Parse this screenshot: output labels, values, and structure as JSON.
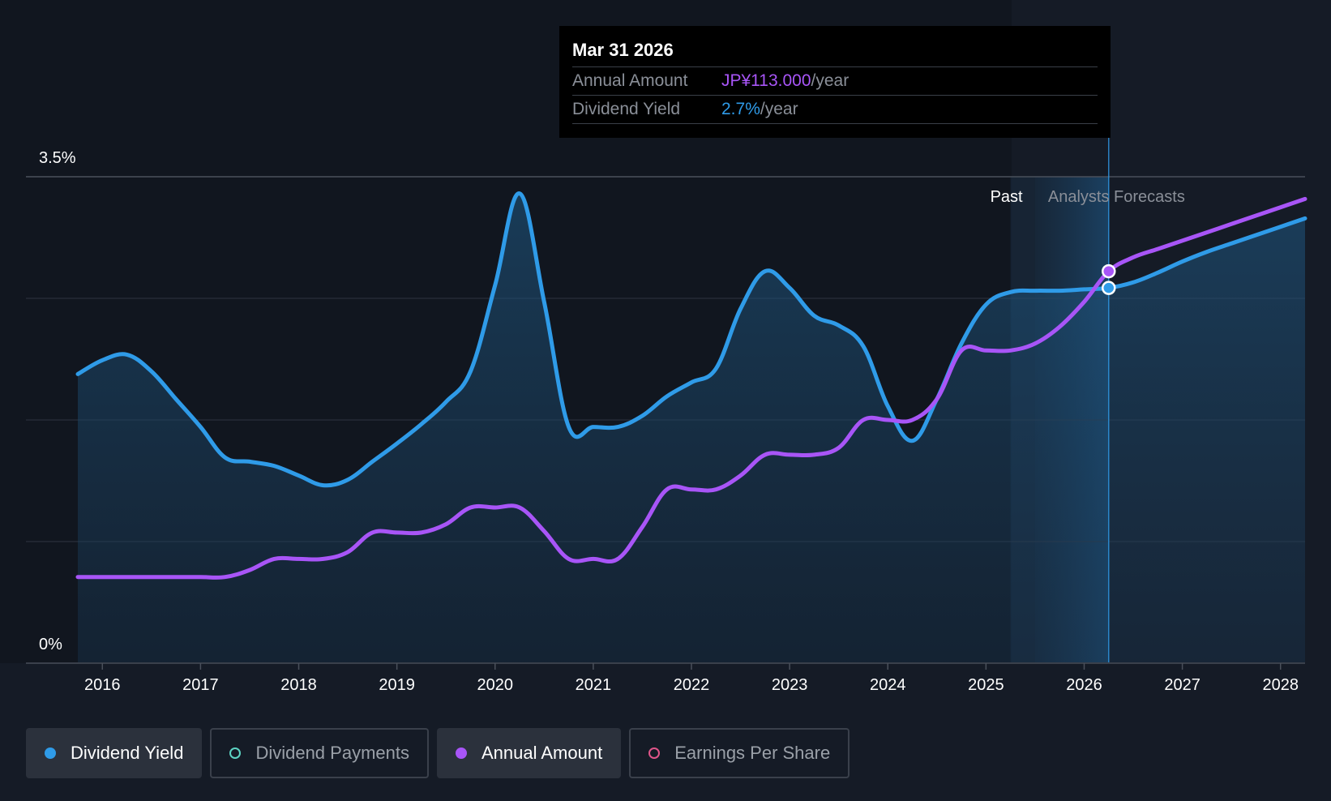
{
  "tooltip": {
    "date": "Mar 31 2026",
    "rows": [
      {
        "label": "Annual Amount",
        "value": "JP¥113.000",
        "unit": "/year"
      },
      {
        "label": "Dividend Yield",
        "value": "2.7%",
        "unit": "/year"
      }
    ]
  },
  "chart_data": {
    "type": "line",
    "y_tick_labels": [
      "3.5%",
      "0%"
    ],
    "ylim": [
      0,
      3.5
    ],
    "x_tick_labels": [
      "2016",
      "2017",
      "2018",
      "2019",
      "2020",
      "2021",
      "2022",
      "2023",
      "2024",
      "2025",
      "2026",
      "2027",
      "2028"
    ],
    "xlim": [
      2015.75,
      2028.25
    ],
    "region_labels": {
      "past": "Past",
      "forecast": "Analysts Forecasts"
    },
    "past_end": 2025.25,
    "forecast_start": 2025.5,
    "cursor_x": 2026.25,
    "grid": true,
    "colors": {
      "dividend_yield": "#2f9be8",
      "annual_amount": "#a855f7",
      "payments": "#5dd3c3",
      "eps": "#e0558a"
    },
    "series": [
      {
        "name": "Dividend Yield",
        "x": [
          2015.75,
          2016.0,
          2016.25,
          2016.5,
          2016.75,
          2017.0,
          2017.25,
          2017.5,
          2017.75,
          2018.0,
          2018.25,
          2018.5,
          2018.75,
          2019.0,
          2019.25,
          2019.5,
          2019.75,
          2020.0,
          2020.25,
          2020.5,
          2020.75,
          2021.0,
          2021.25,
          2021.5,
          2021.75,
          2022.0,
          2022.25,
          2022.5,
          2022.75,
          2023.0,
          2023.25,
          2023.5,
          2023.75,
          2024.0,
          2024.25,
          2024.5,
          2024.75,
          2025.0,
          2025.25,
          2025.5,
          2025.75,
          2026.0,
          2026.25,
          2026.5,
          2026.75,
          2027.0,
          2027.25,
          2027.5,
          2027.75,
          2028.0,
          2028.25
        ],
        "values": [
          2.08,
          2.18,
          2.22,
          2.1,
          1.9,
          1.7,
          1.48,
          1.45,
          1.42,
          1.35,
          1.28,
          1.32,
          1.45,
          1.58,
          1.72,
          1.88,
          2.1,
          2.72,
          3.38,
          2.6,
          1.7,
          1.7,
          1.7,
          1.78,
          1.92,
          2.02,
          2.12,
          2.55,
          2.82,
          2.7,
          2.5,
          2.43,
          2.28,
          1.85,
          1.6,
          1.9,
          2.3,
          2.58,
          2.67,
          2.68,
          2.68,
          2.69,
          2.7,
          2.74,
          2.81,
          2.89,
          2.96,
          3.02,
          3.08,
          3.14,
          3.2
        ]
      },
      {
        "name": "Annual Amount",
        "x": [
          2015.75,
          2016.0,
          2016.25,
          2016.5,
          2016.75,
          2017.0,
          2017.25,
          2017.5,
          2017.75,
          2018.0,
          2018.25,
          2018.5,
          2018.75,
          2019.0,
          2019.25,
          2019.5,
          2019.75,
          2020.0,
          2020.25,
          2020.5,
          2020.75,
          2021.0,
          2021.25,
          2021.5,
          2021.75,
          2022.0,
          2022.25,
          2022.5,
          2022.75,
          2023.0,
          2023.25,
          2023.5,
          2023.75,
          2024.0,
          2024.25,
          2024.5,
          2024.75,
          2025.0,
          2025.25,
          2025.5,
          2025.75,
          2026.0,
          2026.25,
          2026.5,
          2026.75,
          2027.0,
          2027.25,
          2027.5,
          2027.75,
          2028.0,
          2028.25
        ],
        "values": [
          0.62,
          0.62,
          0.62,
          0.62,
          0.62,
          0.62,
          0.62,
          0.67,
          0.75,
          0.75,
          0.75,
          0.8,
          0.94,
          0.94,
          0.94,
          1.0,
          1.12,
          1.12,
          1.12,
          0.95,
          0.75,
          0.75,
          0.75,
          0.98,
          1.25,
          1.25,
          1.25,
          1.35,
          1.5,
          1.5,
          1.5,
          1.55,
          1.75,
          1.75,
          1.75,
          1.9,
          2.25,
          2.25,
          2.25,
          2.3,
          2.42,
          2.6,
          2.82,
          2.92,
          2.98,
          3.04,
          3.1,
          3.16,
          3.22,
          3.28,
          3.34
        ]
      }
    ]
  },
  "legend": [
    {
      "label": "Dividend Yield",
      "active": true,
      "color": "#2f9be8",
      "filled": true
    },
    {
      "label": "Dividend Payments",
      "active": false,
      "color": "#5dd3c3",
      "filled": false
    },
    {
      "label": "Annual Amount",
      "active": true,
      "color": "#a855f7",
      "filled": true
    },
    {
      "label": "Earnings Per Share",
      "active": false,
      "color": "#e0558a",
      "filled": false
    }
  ]
}
